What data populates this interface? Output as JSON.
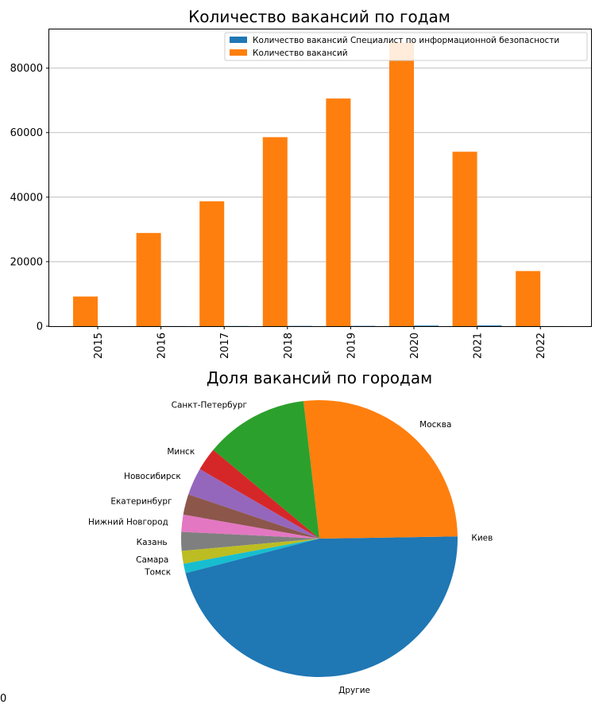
{
  "chart_data": [
    {
      "type": "bar",
      "title": "Количество вакансий по годам",
      "categories": [
        "2015",
        "2016",
        "2017",
        "2018",
        "2019",
        "2020",
        "2021",
        "2022"
      ],
      "series": [
        {
          "name": "Количество вакансий Специалист по информационной безопасности",
          "color": "#1f77b4",
          "values": [
            20,
            40,
            60,
            80,
            90,
            180,
            220,
            30
          ]
        },
        {
          "name": "Количество вакансий",
          "color": "#ff7f0e",
          "values": [
            9200,
            28900,
            38700,
            58600,
            70600,
            88000,
            54100,
            17100
          ]
        }
      ],
      "ylim": [
        0,
        92000
      ],
      "yticks": [
        0,
        20000,
        40000,
        60000,
        80000
      ],
      "ytick_labels": [
        "0",
        "20000",
        "40000",
        "60000",
        "80000"
      ],
      "grid": "horizontal",
      "legend_position": "top-right"
    },
    {
      "type": "pie",
      "title": "Доля вакансий по городам",
      "slices": [
        {
          "label": "Киев",
          "value": 0.25,
          "color": "#1f77b4"
        },
        {
          "label": "Москва",
          "value": 26.6,
          "color": "#ff7f0e"
        },
        {
          "label": "Санкт-Петербург",
          "value": 12.1,
          "color": "#2ca02c"
        },
        {
          "label": "Минск",
          "value": 2.7,
          "color": "#d62728"
        },
        {
          "label": "Новосибирск",
          "value": 3.2,
          "color": "#9467bd"
        },
        {
          "label": "Екатеринбург",
          "value": 2.4,
          "color": "#8c564b"
        },
        {
          "label": "Нижний Новгород",
          "value": 2.0,
          "color": "#e377c2"
        },
        {
          "label": "Казань",
          "value": 2.2,
          "color": "#7f7f7f"
        },
        {
          "label": "Самара",
          "value": 1.5,
          "color": "#bcbd22"
        },
        {
          "label": "Томск",
          "value": 1.1,
          "color": "#17becf"
        },
        {
          "label": "Другие",
          "value": 46.0,
          "color": "#1f77b4"
        }
      ]
    }
  ],
  "stray_text": "0"
}
